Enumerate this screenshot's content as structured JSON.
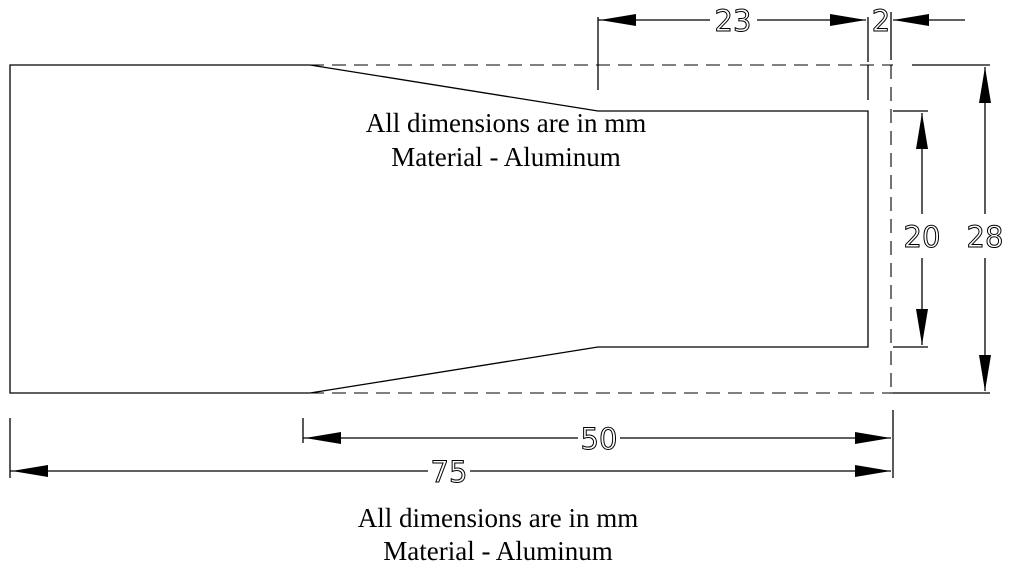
{
  "notes": {
    "line1": "All dimensions are in mm",
    "line2": "Material - Aluminum"
  },
  "dimensions": {
    "d23": "23",
    "d2": "2",
    "d20": "20",
    "d28": "28",
    "d50": "50",
    "d75": "75"
  }
}
